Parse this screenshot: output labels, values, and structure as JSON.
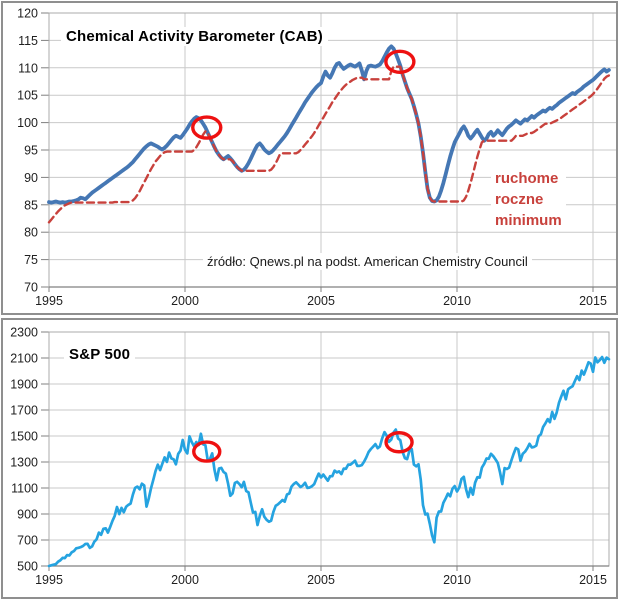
{
  "page": {
    "background": "#ffffff",
    "panel_border": "#8f8f8f",
    "grid_color": "#c9c9c9",
    "axis_color": "#808080",
    "plot_border_color": "#ababab"
  },
  "chart_data": [
    {
      "id": "cab",
      "type": "line",
      "title": "Chemical Activity Barometer (CAB)",
      "source": "źródło: Qnews.pl na podst. American Chemistry Council",
      "annotation": {
        "text": "ruchome\nroczne\nminimum",
        "color": "#c8413c"
      },
      "xlabel": "",
      "ylabel": "",
      "xticks": [
        1995,
        2000,
        2005,
        2010,
        2015
      ],
      "yticks": [
        120,
        115,
        110,
        105,
        100,
        95,
        90,
        85,
        80,
        75,
        70
      ],
      "ylim": [
        70,
        120
      ],
      "xlim": [
        1995,
        2015.9
      ],
      "x_start": 1995.0,
      "x_step": 0.0833333,
      "grid": true,
      "legend_position": "none",
      "markers": {
        "color": "#ee1111",
        "ellipses": [
          {
            "x": 2000.8,
            "y": 99.1
          },
          {
            "x": 2007.9,
            "y": 111.1
          }
        ]
      },
      "series": [
        {
          "name": "CAB",
          "color": "#4577b4",
          "dash": "solid",
          "width": 3.8,
          "values": [
            85.5,
            85.4,
            85.5,
            85.6,
            85.5,
            85.4,
            85.5,
            85.4,
            85.5,
            85.6,
            85.6,
            85.7,
            85.8,
            86.0,
            86.3,
            86.2,
            86.0,
            86.4,
            86.8,
            87.2,
            87.5,
            87.8,
            88.1,
            88.4,
            88.7,
            89.0,
            89.3,
            89.6,
            89.9,
            90.2,
            90.5,
            90.8,
            91.1,
            91.4,
            91.7,
            92.0,
            92.4,
            92.8,
            93.3,
            93.8,
            94.3,
            94.8,
            95.3,
            95.7,
            96.0,
            96.2,
            96.0,
            95.8,
            95.6,
            95.3,
            95.1,
            95.4,
            95.8,
            96.3,
            96.8,
            97.3,
            97.6,
            97.4,
            97.2,
            97.7,
            98.3,
            98.9,
            99.6,
            100.2,
            100.7,
            101.0,
            100.8,
            100.4,
            99.8,
            99.1,
            98.2,
            97.3,
            96.4,
            95.5,
            94.7,
            94.1,
            93.6,
            93.3,
            93.6,
            93.9,
            93.5,
            93.0,
            92.4,
            91.9,
            91.5,
            91.2,
            91.4,
            91.9,
            92.6,
            93.4,
            94.3,
            95.2,
            95.9,
            96.2,
            95.7,
            95.1,
            94.7,
            94.4,
            94.6,
            95.0,
            95.5,
            96.0,
            96.5,
            97.0,
            97.5,
            98.1,
            98.8,
            99.5,
            100.2,
            100.9,
            101.6,
            102.3,
            103.0,
            103.7,
            104.3,
            104.9,
            105.5,
            106.0,
            106.5,
            106.9,
            107.2,
            108.4,
            109.3,
            108.6,
            108.2,
            109.0,
            110.0,
            110.7,
            110.9,
            110.3,
            109.8,
            110.1,
            110.4,
            110.6,
            110.4,
            110.2,
            110.5,
            110.8,
            109.5,
            107.9,
            109.4,
            110.3,
            110.4,
            110.3,
            110.2,
            110.4,
            110.6,
            111.2,
            112.0,
            112.8,
            113.5,
            113.9,
            113.5,
            112.6,
            111.5,
            110.4,
            108.8,
            107.5,
            106.3,
            105.3,
            104.3,
            103.0,
            101.5,
            99.8,
            97.5,
            94.5,
            91.0,
            88.0,
            86.3,
            85.7,
            85.6,
            85.8,
            86.5,
            87.6,
            89.0,
            90.6,
            92.2,
            93.8,
            95.2,
            96.4,
            97.2,
            98.0,
            98.8,
            99.3,
            98.6,
            97.6,
            97.1,
            97.6,
            98.2,
            98.7,
            98.0,
            97.3,
            96.7,
            97.1,
            97.9,
            98.3,
            97.6,
            98.0,
            98.6,
            98.1,
            97.7,
            98.3,
            98.9,
            99.3,
            99.6,
            100.0,
            100.4,
            100.1,
            99.8,
            100.2,
            100.6,
            100.4,
            100.8,
            101.2,
            100.9,
            101.3,
            101.6,
            101.9,
            102.2,
            102.0,
            102.4,
            102.7,
            102.5,
            102.9,
            103.2,
            103.6,
            103.9,
            104.2,
            104.5,
            104.8,
            105.1,
            105.4,
            105.2,
            105.6,
            105.9,
            106.2,
            106.6,
            106.9,
            107.2,
            107.5,
            107.8,
            108.2,
            108.6,
            109.0,
            109.4,
            109.7,
            109.3,
            109.6
          ]
        },
        {
          "name": "ruchome roczne minimum",
          "color": "#c8413c",
          "dash": "dashed",
          "width": 2.4,
          "values": [
            81.8,
            82.3,
            82.8,
            83.3,
            83.8,
            84.2,
            84.6,
            84.9,
            85.1,
            85.3,
            85.4,
            85.4,
            85.4,
            85.4,
            85.4,
            85.4,
            85.4,
            85.4,
            85.4,
            85.4,
            85.4,
            85.4,
            85.4,
            85.4,
            85.4,
            85.4,
            85.4,
            85.4,
            85.4,
            85.5,
            85.5,
            85.5,
            85.5,
            85.5,
            85.5,
            85.5,
            85.6,
            85.8,
            86.2,
            86.8,
            87.5,
            88.3,
            89.1,
            89.9,
            90.7,
            91.5,
            92.2,
            92.9,
            93.4,
            93.9,
            94.3,
            94.6,
            94.7,
            94.7,
            94.7,
            94.7,
            94.7,
            94.7,
            94.7,
            94.7,
            94.7,
            94.7,
            94.7,
            94.7,
            95.0,
            95.5,
            96.2,
            97.0,
            97.8,
            98.4,
            98.2,
            97.3,
            96.4,
            95.5,
            94.7,
            94.1,
            93.6,
            93.3,
            93.3,
            93.3,
            93.3,
            93.0,
            92.4,
            91.9,
            91.5,
            91.2,
            91.2,
            91.2,
            91.2,
            91.2,
            91.2,
            91.2,
            91.2,
            91.2,
            91.2,
            91.2,
            91.2,
            91.2,
            91.4,
            91.9,
            92.6,
            93.4,
            94.3,
            94.4,
            94.4,
            94.4,
            94.4,
            94.4,
            94.4,
            94.4,
            94.6,
            95.0,
            95.5,
            96.0,
            96.5,
            97.0,
            97.5,
            98.1,
            98.8,
            99.5,
            100.2,
            100.9,
            101.6,
            102.3,
            103.0,
            103.7,
            104.3,
            104.9,
            105.5,
            106.0,
            106.5,
            106.9,
            107.2,
            107.5,
            107.8,
            108.0,
            108.2,
            108.2,
            108.2,
            107.9,
            107.9,
            107.9,
            107.9,
            107.9,
            107.9,
            107.9,
            107.9,
            107.9,
            107.9,
            107.9,
            107.9,
            109.4,
            110.2,
            110.2,
            110.2,
            110.2,
            108.8,
            107.5,
            106.3,
            105.3,
            104.3,
            103.0,
            101.5,
            99.8,
            97.5,
            94.5,
            91.0,
            88.0,
            86.3,
            85.7,
            85.6,
            85.6,
            85.6,
            85.6,
            85.6,
            85.6,
            85.6,
            85.6,
            85.6,
            85.6,
            85.6,
            85.6,
            85.6,
            85.8,
            86.5,
            87.6,
            89.0,
            90.6,
            92.2,
            93.8,
            95.2,
            96.4,
            96.7,
            96.7,
            96.7,
            96.7,
            96.7,
            96.7,
            96.7,
            96.7,
            96.7,
            96.7,
            96.7,
            96.7,
            96.7,
            97.1,
            97.6,
            97.6,
            97.6,
            97.6,
            97.8,
            98.0,
            98.1,
            98.1,
            98.3,
            98.6,
            98.9,
            99.2,
            99.5,
            99.8,
            99.8,
            99.8,
            100.0,
            100.2,
            100.4,
            100.6,
            100.9,
            101.2,
            101.5,
            101.8,
            102.1,
            102.4,
            102.7,
            103.0,
            103.3,
            103.6,
            103.9,
            104.2,
            104.5,
            104.8,
            105.2,
            105.7,
            106.2,
            106.8,
            107.4,
            108.0,
            108.4,
            108.6
          ]
        }
      ]
    },
    {
      "id": "sp",
      "type": "line",
      "title": "S&P 500",
      "source": "",
      "xlabel": "",
      "ylabel": "",
      "xticks": [
        1995,
        2000,
        2005,
        2010,
        2015
      ],
      "yticks": [
        2300,
        2100,
        1900,
        1700,
        1500,
        1300,
        1100,
        900,
        700,
        500
      ],
      "ylim": [
        500,
        2300
      ],
      "xlim": [
        1995,
        2015.6
      ],
      "x_start": 1995.0,
      "x_step": 0.0833333,
      "grid": true,
      "legend_position": "none",
      "markers": {
        "color": "#ee1111",
        "ellipses": [
          {
            "x": 2000.8,
            "y": 1380
          },
          {
            "x": 2007.87,
            "y": 1452
          }
        ]
      },
      "series": [
        {
          "name": "S&P 500",
          "color": "#25a3e0",
          "dash": "solid",
          "width": 2.7,
          "values": [
            500,
            505,
            510,
            514,
            533,
            544,
            562,
            561,
            584,
            581,
            605,
            615,
            636,
            640,
            645,
            654,
            669,
            671,
            639,
            651,
            687,
            705,
            757,
            740,
            786,
            790,
            757,
            801,
            848,
            885,
            954,
            899,
            947,
            914,
            955,
            970,
            980,
            1049,
            1101,
            1111,
            1090,
            1133,
            1120,
            957,
            1017,
            1098,
            1163,
            1229,
            1279,
            1238,
            1286,
            1335,
            1301,
            1372,
            1328,
            1320,
            1282,
            1362,
            1388,
            1469,
            1394,
            1366,
            1498,
            1452,
            1420,
            1454,
            1430,
            1517,
            1436,
            1429,
            1314,
            1320,
            1366,
            1239,
            1160,
            1249,
            1255,
            1224,
            1211,
            1133,
            1040,
            1059,
            1139,
            1148,
            1130,
            1106,
            1147,
            1076,
            1067,
            989,
            911,
            916,
            815,
            885,
            936,
            879,
            855,
            841,
            848,
            916,
            963,
            974,
            990,
            1008,
            995,
            1050,
            1058,
            1111,
            1131,
            1144,
            1126,
            1107,
            1120,
            1140,
            1101,
            1104,
            1114,
            1130,
            1173,
            1211,
            1181,
            1203,
            1180,
            1156,
            1191,
            1191,
            1234,
            1220,
            1228,
            1207,
            1249,
            1248,
            1280,
            1280,
            1294,
            1310,
            1270,
            1270,
            1276,
            1303,
            1335,
            1377,
            1400,
            1418,
            1438,
            1406,
            1420,
            1482,
            1530,
            1503,
            1455,
            1473,
            1526,
            1549,
            1481,
            1468,
            1378,
            1330,
            1322,
            1385,
            1400,
            1280,
            1267,
            1282,
            1166,
            968,
            896,
            903,
            825,
            735,
            683,
            872,
            919,
            919,
            987,
            1020,
            1057,
            1036,
            1095,
            1115,
            1073,
            1104,
            1169,
            1186,
            1089,
            1030,
            1101,
            1049,
            1141,
            1183,
            1180,
            1257,
            1286,
            1327,
            1325,
            1363,
            1345,
            1320,
            1292,
            1218,
            1131,
            1253,
            1246,
            1257,
            1312,
            1365,
            1408,
            1397,
            1310,
            1362,
            1379,
            1406,
            1440,
            1412,
            1416,
            1426,
            1498,
            1514,
            1569,
            1597,
            1630,
            1606,
            1685,
            1632,
            1681,
            1756,
            1805,
            1848,
            1782,
            1859,
            1872,
            1883,
            1923,
            1960,
            1930,
            2003,
            1972,
            2018,
            2067,
            2058,
            1994,
            2104,
            2067,
            2085,
            2107,
            2063,
            2103,
            2091
          ]
        }
      ]
    }
  ]
}
